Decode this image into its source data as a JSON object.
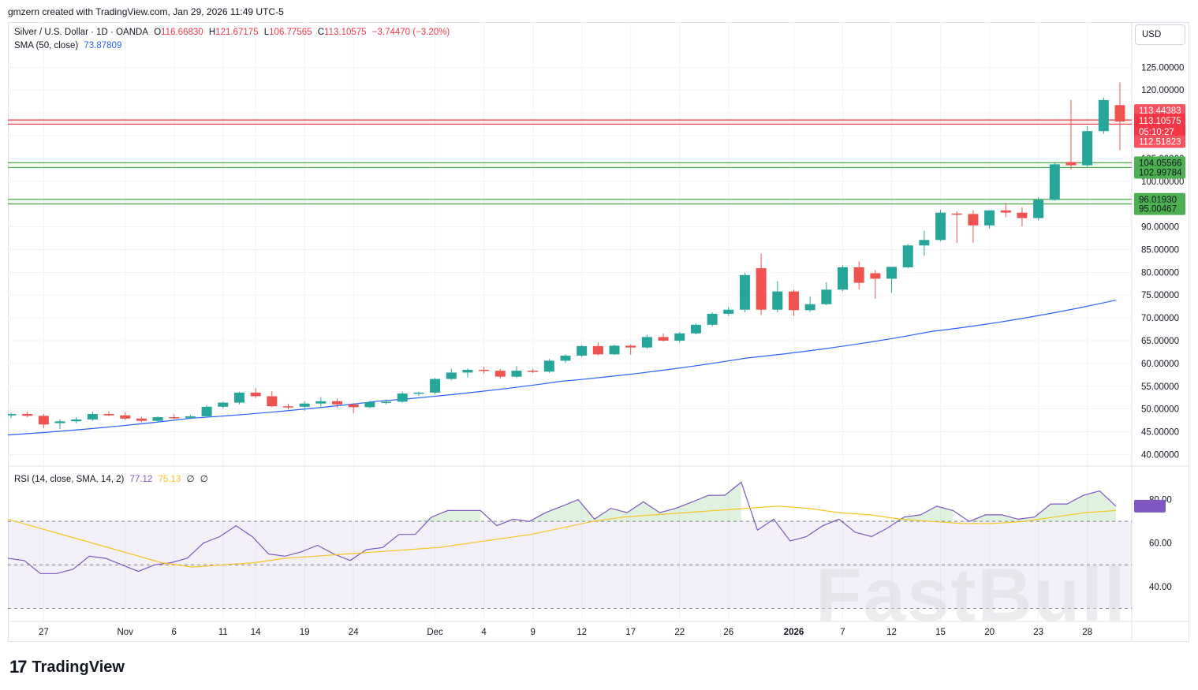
{
  "header": {
    "created_by": "gmzern created with TradingView.com, Jan 29, 2026 11:49 UTC-5"
  },
  "legend": {
    "symbol": "Silver / U.S. Dollar · 1D · OANDA",
    "open_label": "O",
    "open": "116.66830",
    "high_label": "H",
    "high": "121.67175",
    "low_label": "L",
    "low": "106.77565",
    "close_label": "C",
    "close": "113.10575",
    "change": "−3.74470 (−3.20%)",
    "sma_label": "SMA (50, close)",
    "sma_value": "73.87809",
    "rsi_label": "RSI (14, close, SMA, 14, 2)",
    "rsi_value": "77.12",
    "rsi_sma_value": "75.13",
    "rsi_extra1": "∅",
    "rsi_extra2": "∅"
  },
  "currency_button": "USD",
  "footer": {
    "logo_mark": "17",
    "logo_text": "TradingView"
  },
  "watermark": "FastBull",
  "colors": {
    "up": "#26a69a",
    "down": "#ef5350",
    "sma": "#2962ff",
    "rsi": "#7e57c2",
    "rsi_sma": "#f7c325",
    "support": "#4caf50",
    "resistance": "#f23645"
  },
  "chart_data": {
    "type": "candlestick",
    "price_axis": {
      "min": 38,
      "max": 128,
      "ticks": [
        "125.00000",
        "120.00000",
        "115.00000",
        "110.00000",
        "105.00000",
        "100.00000",
        "95.00000",
        "90.00000",
        "85.00000",
        "80.00000",
        "75.00000",
        "70.00000",
        "65.00000",
        "60.00000",
        "55.00000",
        "50.00000",
        "45.00000",
        "40.00000"
      ]
    },
    "x_labels": [
      "27",
      "Nov",
      "6",
      "11",
      "14",
      "19",
      "24",
      "Dec",
      "4",
      "9",
      "12",
      "17",
      "22",
      "26",
      "2026",
      "7",
      "12",
      "15",
      "20",
      "23",
      "28"
    ],
    "candles": [
      [
        48.6,
        49.2,
        48.0,
        48.9
      ],
      [
        48.9,
        49.4,
        48.2,
        48.5
      ],
      [
        48.5,
        48.9,
        45.8,
        46.6
      ],
      [
        46.9,
        47.8,
        45.6,
        47.3
      ],
      [
        47.3,
        48.2,
        46.9,
        47.7
      ],
      [
        47.7,
        49.4,
        47.4,
        48.9
      ],
      [
        48.9,
        49.5,
        48.5,
        48.6
      ],
      [
        48.6,
        49.3,
        47.6,
        47.9
      ],
      [
        47.9,
        48.3,
        47.1,
        47.4
      ],
      [
        47.4,
        48.4,
        47.0,
        48.2
      ],
      [
        48.2,
        48.8,
        47.8,
        48.0
      ],
      [
        48.0,
        48.7,
        47.8,
        48.4
      ],
      [
        48.4,
        50.8,
        48.2,
        50.5
      ],
      [
        50.5,
        51.6,
        50.1,
        51.4
      ],
      [
        51.4,
        53.8,
        51.0,
        53.6
      ],
      [
        53.6,
        54.6,
        52.4,
        52.8
      ],
      [
        52.8,
        53.9,
        50.4,
        50.6
      ],
      [
        50.6,
        51.2,
        49.9,
        50.5
      ],
      [
        50.5,
        51.7,
        49.6,
        51.2
      ],
      [
        51.2,
        52.6,
        50.5,
        51.7
      ],
      [
        51.7,
        52.3,
        50.3,
        51.0
      ],
      [
        51.0,
        51.3,
        49.1,
        50.4
      ],
      [
        50.4,
        51.8,
        50.2,
        51.5
      ],
      [
        51.5,
        52.1,
        51.0,
        51.6
      ],
      [
        51.6,
        53.8,
        51.4,
        53.4
      ],
      [
        53.4,
        53.8,
        52.9,
        53.6
      ],
      [
        53.6,
        56.8,
        53.2,
        56.6
      ],
      [
        56.6,
        58.9,
        56.3,
        58.0
      ],
      [
        58.0,
        58.9,
        56.9,
        58.6
      ],
      [
        58.6,
        59.3,
        57.8,
        58.4
      ],
      [
        58.4,
        58.8,
        56.7,
        57.1
      ],
      [
        57.1,
        59.4,
        56.8,
        58.4
      ],
      [
        58.4,
        58.8,
        57.9,
        58.2
      ],
      [
        58.2,
        61.0,
        57.9,
        60.6
      ],
      [
        60.6,
        62.0,
        60.1,
        61.7
      ],
      [
        61.7,
        64.1,
        61.4,
        63.8
      ],
      [
        63.8,
        64.6,
        61.8,
        62.0
      ],
      [
        62.0,
        64.1,
        61.9,
        63.9
      ],
      [
        63.9,
        64.2,
        61.9,
        63.5
      ],
      [
        63.5,
        66.3,
        63.2,
        65.8
      ],
      [
        65.8,
        66.6,
        64.8,
        65.0
      ],
      [
        65.0,
        66.9,
        64.6,
        66.6
      ],
      [
        66.6,
        68.8,
        66.4,
        68.5
      ],
      [
        68.5,
        71.2,
        68.1,
        70.9
      ],
      [
        70.9,
        72.4,
        70.4,
        71.8
      ],
      [
        71.8,
        79.9,
        71.2,
        79.4
      ],
      [
        80.9,
        84.1,
        70.6,
        71.8
      ],
      [
        71.8,
        78.0,
        71.2,
        75.8
      ],
      [
        75.8,
        76.2,
        70.4,
        71.7
      ],
      [
        71.7,
        74.7,
        71.3,
        73.0
      ],
      [
        73.0,
        77.8,
        72.8,
        76.2
      ],
      [
        76.2,
        81.6,
        75.9,
        81.1
      ],
      [
        81.1,
        82.4,
        76.3,
        77.7
      ],
      [
        79.8,
        80.5,
        74.2,
        78.6
      ],
      [
        78.6,
        81.1,
        75.5,
        81.2
      ],
      [
        81.1,
        86.2,
        80.9,
        85.9
      ],
      [
        85.9,
        89.1,
        83.6,
        87.1
      ],
      [
        87.1,
        93.7,
        86.8,
        93.1
      ],
      [
        92.9,
        93.4,
        86.4,
        92.8
      ],
      [
        92.8,
        93.6,
        86.5,
        90.3
      ],
      [
        90.3,
        93.6,
        89.6,
        93.6
      ],
      [
        93.6,
        95.2,
        92.1,
        93.1
      ],
      [
        93.1,
        94.3,
        90.1,
        91.9
      ],
      [
        91.9,
        96.5,
        91.4,
        95.9
      ],
      [
        95.9,
        104.2,
        95.7,
        103.7
      ],
      [
        104.2,
        117.8,
        102.6,
        103.5
      ],
      [
        103.5,
        112.1,
        103.2,
        111.0
      ],
      [
        111.0,
        118.4,
        110.4,
        117.8
      ],
      [
        116.7,
        121.7,
        106.8,
        113.1
      ]
    ],
    "sma50": [
      44.3,
      48.0,
      51.7,
      56.1,
      61.2,
      67.0,
      73.9
    ],
    "horizontal_levels": [
      {
        "value": "113.44383",
        "kind": "resistance"
      },
      {
        "value": "112.51823",
        "kind": "resistance"
      },
      {
        "value": "104.05566",
        "kind": "support"
      },
      {
        "value": "102.99784",
        "kind": "support"
      },
      {
        "value": "96.01930",
        "kind": "support"
      },
      {
        "value": "95.00467",
        "kind": "support"
      }
    ],
    "price_tag": {
      "value": "113.10575",
      "countdown": "05:10:27"
    },
    "rsi": {
      "axis": {
        "min": 24,
        "max": 94,
        "ticks": [
          "80.00",
          "60.00",
          "40.00"
        ],
        "overbought": 70,
        "mid": 50,
        "oversold": 30
      },
      "values": [
        53,
        52,
        46,
        46,
        48,
        54,
        53,
        50,
        47,
        50,
        51,
        53,
        60,
        63,
        68,
        63,
        55,
        54,
        56,
        59,
        55,
        52,
        57,
        58,
        64,
        64,
        72,
        75,
        75,
        75,
        68,
        71,
        70,
        74,
        77,
        80,
        71,
        76,
        74,
        79,
        74,
        76,
        79,
        82,
        82,
        88,
        66,
        71,
        61,
        63,
        68,
        71,
        65,
        63,
        67,
        72,
        73,
        77,
        75,
        70,
        73,
        73,
        71,
        72,
        78,
        78,
        82,
        84,
        77
      ],
      "sma": [
        71,
        67,
        63,
        59,
        55,
        51,
        49,
        50,
        51,
        53,
        54,
        55,
        56,
        57,
        58,
        60,
        62,
        64,
        67,
        70,
        72,
        73,
        74,
        75,
        76,
        77,
        76,
        74,
        73,
        71,
        70,
        69,
        69,
        70,
        72,
        74,
        75
      ]
    }
  }
}
